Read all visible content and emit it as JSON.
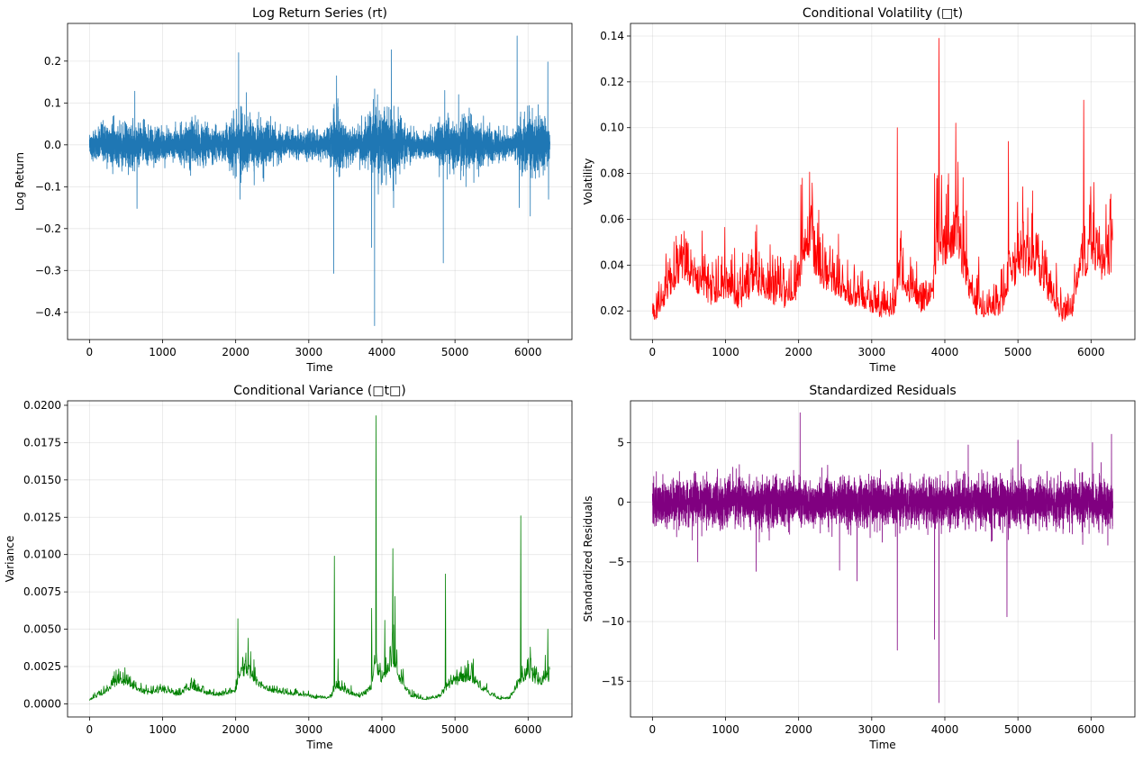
{
  "chart_data": [
    {
      "type": "line",
      "title": "Log Return Series (rt)",
      "xlabel": "Time",
      "ylabel": "Log Return",
      "xlim": [
        -300,
        6600
      ],
      "ylim": [
        -0.465,
        0.29
      ],
      "xticks": [
        0,
        1000,
        2000,
        3000,
        4000,
        5000,
        6000
      ],
      "xtick_labels": [
        "0",
        "1000",
        "2000",
        "3000",
        "4000",
        "5000",
        "6000"
      ],
      "yticks": [
        -0.4,
        -0.3,
        -0.2,
        -0.1,
        0.0,
        0.1,
        0.2
      ],
      "ytick_labels": [
        "−0.4",
        "−0.3",
        "−0.2",
        "−0.1",
        "0.0",
        "0.1",
        "0.2"
      ],
      "grid": true,
      "series": [
        {
          "color": "#1f77b4",
          "n_points": 6300,
          "envelope": [
            [
              0,
              0.03
            ],
            [
              200,
              0.05
            ],
            [
              400,
              0.06
            ],
            [
              600,
              0.06
            ],
            [
              800,
              0.05
            ],
            [
              1000,
              0.04
            ],
            [
              1200,
              0.045
            ],
            [
              1400,
              0.06
            ],
            [
              1600,
              0.05
            ],
            [
              1800,
              0.04
            ],
            [
              2000,
              0.07
            ],
            [
              2100,
              0.09
            ],
            [
              2200,
              0.07
            ],
            [
              2400,
              0.05
            ],
            [
              2600,
              0.04
            ],
            [
              2800,
              0.035
            ],
            [
              3000,
              0.04
            ],
            [
              3200,
              0.03
            ],
            [
              3350,
              0.08
            ],
            [
              3500,
              0.05
            ],
            [
              3700,
              0.04
            ],
            [
              3900,
              0.09
            ],
            [
              4000,
              0.09
            ],
            [
              4150,
              0.1
            ],
            [
              4300,
              0.05
            ],
            [
              4500,
              0.03
            ],
            [
              4700,
              0.035
            ],
            [
              4850,
              0.06
            ],
            [
              5000,
              0.06
            ],
            [
              5200,
              0.07
            ],
            [
              5400,
              0.05
            ],
            [
              5600,
              0.035
            ],
            [
              5800,
              0.03
            ],
            [
              5900,
              0.08
            ],
            [
              6100,
              0.07
            ],
            [
              6300,
              0.06
            ]
          ],
          "spikes": [
            [
              620,
              0.128
            ],
            [
              650,
              -0.152
            ],
            [
              2040,
              0.22
            ],
            [
              2060,
              -0.13
            ],
            [
              3340,
              -0.307
            ],
            [
              3380,
              0.165
            ],
            [
              3860,
              -0.245
            ],
            [
              3900,
              -0.432
            ],
            [
              3940,
              0.12
            ],
            [
              4130,
              0.227
            ],
            [
              4160,
              -0.15
            ],
            [
              4840,
              -0.282
            ],
            [
              4860,
              0.13
            ],
            [
              5050,
              0.12
            ],
            [
              5150,
              -0.1
            ],
            [
              5850,
              0.26
            ],
            [
              5880,
              -0.15
            ],
            [
              6030,
              -0.17
            ],
            [
              6270,
              0.198
            ],
            [
              6280,
              -0.13
            ]
          ]
        }
      ]
    },
    {
      "type": "line",
      "title": "Conditional Volatility (□t)",
      "xlabel": "Time",
      "ylabel": "Volatility",
      "xlim": [
        -300,
        6600
      ],
      "ylim": [
        0.0075,
        0.1455
      ],
      "xticks": [
        0,
        1000,
        2000,
        3000,
        4000,
        5000,
        6000
      ],
      "xtick_labels": [
        "0",
        "1000",
        "2000",
        "3000",
        "4000",
        "5000",
        "6000"
      ],
      "yticks": [
        0.02,
        0.04,
        0.06,
        0.08,
        0.1,
        0.12,
        0.14
      ],
      "ytick_labels": [
        "0.02",
        "0.04",
        "0.06",
        "0.08",
        "0.10",
        "0.12",
        "0.14"
      ],
      "grid": true,
      "series": [
        {
          "color": "#ff0000",
          "n_points": 1260,
          "baseline": [
            [
              0,
              0.016
            ],
            [
              150,
              0.025
            ],
            [
              300,
              0.033
            ],
            [
              400,
              0.04
            ],
            [
              600,
              0.033
            ],
            [
              800,
              0.026
            ],
            [
              1000,
              0.03
            ],
            [
              1200,
              0.024
            ],
            [
              1400,
              0.033
            ],
            [
              1600,
              0.027
            ],
            [
              1800,
              0.025
            ],
            [
              2000,
              0.03
            ],
            [
              2050,
              0.045
            ],
            [
              2150,
              0.048
            ],
            [
              2300,
              0.036
            ],
            [
              2500,
              0.03
            ],
            [
              2700,
              0.026
            ],
            [
              2900,
              0.024
            ],
            [
              3100,
              0.02
            ],
            [
              3300,
              0.02
            ],
            [
              3380,
              0.035
            ],
            [
              3500,
              0.028
            ],
            [
              3700,
              0.022
            ],
            [
              3850,
              0.03
            ],
            [
              3900,
              0.05
            ],
            [
              4000,
              0.04
            ],
            [
              4150,
              0.055
            ],
            [
              4250,
              0.04
            ],
            [
              4400,
              0.022
            ],
            [
              4600,
              0.018
            ],
            [
              4800,
              0.022
            ],
            [
              4900,
              0.035
            ],
            [
              5100,
              0.04
            ],
            [
              5200,
              0.042
            ],
            [
              5400,
              0.03
            ],
            [
              5600,
              0.018
            ],
            [
              5750,
              0.02
            ],
            [
              5850,
              0.035
            ],
            [
              6000,
              0.045
            ],
            [
              6150,
              0.038
            ],
            [
              6300,
              0.042
            ]
          ],
          "spikes": [
            [
              2030,
              0.075
            ],
            [
              2170,
              0.066
            ],
            [
              3350,
              0.1
            ],
            [
              3400,
              0.055
            ],
            [
              3860,
              0.08
            ],
            [
              3920,
              0.139
            ],
            [
              4040,
              0.075
            ],
            [
              4150,
              0.102
            ],
            [
              4180,
              0.085
            ],
            [
              4870,
              0.094
            ],
            [
              5250,
              0.054
            ],
            [
              5900,
              0.112
            ],
            [
              6030,
              0.063
            ],
            [
              6270,
              0.071
            ]
          ]
        }
      ]
    },
    {
      "type": "line",
      "title": "Conditional Variance (□t□)",
      "xlabel": "Time",
      "ylabel": "Variance",
      "xlim": [
        -300,
        6600
      ],
      "ylim": [
        -0.00088,
        0.0203
      ],
      "xticks": [
        0,
        1000,
        2000,
        3000,
        4000,
        5000,
        6000
      ],
      "xtick_labels": [
        "0",
        "1000",
        "2000",
        "3000",
        "4000",
        "5000",
        "6000"
      ],
      "yticks": [
        0.0,
        0.0025,
        0.005,
        0.0075,
        0.01,
        0.0125,
        0.015,
        0.0175,
        0.02
      ],
      "ytick_labels": [
        "0.0000",
        "0.0025",
        "0.0050",
        "0.0075",
        "0.0100",
        "0.0125",
        "0.0150",
        "0.0175",
        "0.0200"
      ],
      "grid": true,
      "series": [
        {
          "color": "#008000",
          "n_points": 1260,
          "baseline": [
            [
              0,
              0.00025
            ],
            [
              150,
              0.0006
            ],
            [
              300,
              0.0011
            ],
            [
              400,
              0.0016
            ],
            [
              600,
              0.0011
            ],
            [
              800,
              0.0007
            ],
            [
              1000,
              0.0009
            ],
            [
              1200,
              0.0006
            ],
            [
              1400,
              0.0011
            ],
            [
              1600,
              0.0007
            ],
            [
              1800,
              0.0006
            ],
            [
              2000,
              0.0009
            ],
            [
              2050,
              0.002
            ],
            [
              2150,
              0.0023
            ],
            [
              2300,
              0.0013
            ],
            [
              2500,
              0.0009
            ],
            [
              2700,
              0.0007
            ],
            [
              2900,
              0.0006
            ],
            [
              3100,
              0.0004
            ],
            [
              3300,
              0.0004
            ],
            [
              3380,
              0.0012
            ],
            [
              3500,
              0.0008
            ],
            [
              3700,
              0.0005
            ],
            [
              3850,
              0.0009
            ],
            [
              3900,
              0.0025
            ],
            [
              4000,
              0.0016
            ],
            [
              4150,
              0.003
            ],
            [
              4250,
              0.0016
            ],
            [
              4400,
              0.0005
            ],
            [
              4600,
              0.0003
            ],
            [
              4800,
              0.0005
            ],
            [
              4900,
              0.0012
            ],
            [
              5100,
              0.0016
            ],
            [
              5200,
              0.0018
            ],
            [
              5400,
              0.0009
            ],
            [
              5600,
              0.0003
            ],
            [
              5750,
              0.0004
            ],
            [
              5850,
              0.0012
            ],
            [
              6000,
              0.002
            ],
            [
              6150,
              0.0014
            ],
            [
              6300,
              0.0018
            ]
          ],
          "spikes": [
            [
              2030,
              0.0057
            ],
            [
              2170,
              0.0044
            ],
            [
              3350,
              0.0099
            ],
            [
              3400,
              0.003
            ],
            [
              3860,
              0.0064
            ],
            [
              3920,
              0.0193
            ],
            [
              4040,
              0.0056
            ],
            [
              4150,
              0.0104
            ],
            [
              4180,
              0.0072
            ],
            [
              4870,
              0.0087
            ],
            [
              5250,
              0.003
            ],
            [
              5900,
              0.0126
            ],
            [
              6030,
              0.0038
            ],
            [
              6270,
              0.005
            ]
          ]
        }
      ]
    },
    {
      "type": "line",
      "title": "Standardized Residuals",
      "xlabel": "Time",
      "ylabel": "Standardized Residuals",
      "xlim": [
        -300,
        6600
      ],
      "ylim": [
        -18.0,
        8.5
      ],
      "xticks": [
        0,
        1000,
        2000,
        3000,
        4000,
        5000,
        6000
      ],
      "xtick_labels": [
        "0",
        "1000",
        "2000",
        "3000",
        "4000",
        "5000",
        "6000"
      ],
      "yticks": [
        -15,
        -10,
        -5,
        0,
        5
      ],
      "ytick_labels": [
        "−15",
        "−10",
        "−5",
        "0",
        "5"
      ],
      "grid": true,
      "series": [
        {
          "color": "#800080",
          "n_points": 6300,
          "envelope_sd": 1.0,
          "spikes": [
            [
              620,
              -5.0
            ],
            [
              1420,
              -5.8
            ],
            [
              2020,
              7.5
            ],
            [
              2560,
              -5.7
            ],
            [
              2800,
              -6.6
            ],
            [
              3350,
              -12.4
            ],
            [
              3860,
              -11.5
            ],
            [
              3920,
              -16.8
            ],
            [
              4320,
              4.8
            ],
            [
              4850,
              -9.6
            ],
            [
              5000,
              5.2
            ],
            [
              6020,
              5.0
            ],
            [
              6280,
              5.7
            ],
            [
              6230,
              -3.6
            ]
          ]
        }
      ]
    }
  ]
}
